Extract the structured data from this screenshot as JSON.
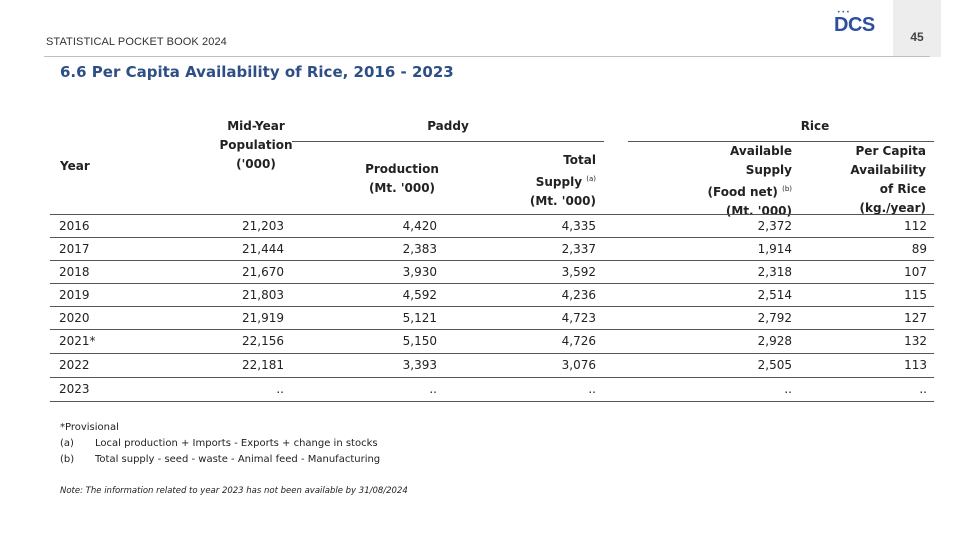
{
  "header": {
    "book_title": "STATISTICAL POCKET BOOK 2024",
    "logo_text": "DCS",
    "page_number": "45"
  },
  "section_title": "6.6 Per Capita Availability of Rice, 2016 - 2023",
  "table": {
    "col_year": "Year",
    "col_population": [
      "Mid-Year",
      "Population",
      "('000)"
    ],
    "group_paddy": "Paddy",
    "col_production": [
      "Production",
      "(Mt. '000)"
    ],
    "col_total_supply": [
      "Total",
      "Supply",
      "(a)",
      "(Mt. '000)"
    ],
    "group_rice": "Rice",
    "col_available_supply": [
      "Available",
      "Supply",
      "(Food  net)",
      "(b)",
      "(Mt. '000)"
    ],
    "col_per_capita": [
      "Per Capita",
      "Availability",
      "of Rice",
      "(kg./year)"
    ],
    "rows": [
      {
        "year": "2016",
        "population": "21,203",
        "production": "4,420",
        "total_supply": "4,335",
        "available_supply": "2,372",
        "per_capita": "112"
      },
      {
        "year": "2017",
        "population": "21,444",
        "production": "2,383",
        "total_supply": "2,337",
        "available_supply": "1,914",
        "per_capita": "89"
      },
      {
        "year": "2018",
        "population": "21,670",
        "production": "3,930",
        "total_supply": "3,592",
        "available_supply": "2,318",
        "per_capita": "107"
      },
      {
        "year": "2019",
        "population": "21,803",
        "production": "4,592",
        "total_supply": "4,236",
        "available_supply": "2,514",
        "per_capita": "115"
      },
      {
        "year": "2020",
        "population": "21,919",
        "production": "5,121",
        "total_supply": "4,723",
        "available_supply": "2,792",
        "per_capita": "127"
      },
      {
        "year": "2021*",
        "population": "22,156",
        "production": "5,150",
        "total_supply": "4,726",
        "available_supply": "2,928",
        "per_capita": "132"
      },
      {
        "year": "2022",
        "population": "22,181",
        "production": "3,393",
        "total_supply": "3,076",
        "available_supply": "2,505",
        "per_capita": "113"
      },
      {
        "year": "2023",
        "population": "..",
        "production": "..",
        "total_supply": "..",
        "available_supply": "..",
        "per_capita": ".."
      }
    ]
  },
  "footnotes": {
    "provisional": "*Provisional",
    "a_label": "(a)",
    "a_text": "Local production + Imports - Exports + change in stocks",
    "b_label": "(b)",
    "b_text": "Total supply - seed - waste - Animal feed - Manufacturing",
    "note": "Note: The information related to year 2023 has not been available by 31/08/2024"
  }
}
